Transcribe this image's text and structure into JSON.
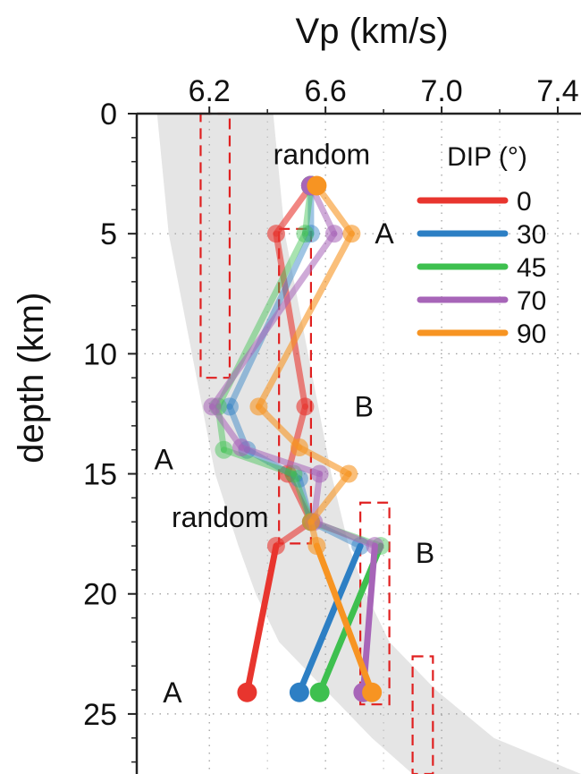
{
  "chart_data": {
    "type": "line",
    "xlabel": "Vp (km/s)",
    "ylabel": "depth (km)",
    "xlim": [
      5.95,
      7.48
    ],
    "ylim": [
      0,
      27.5
    ],
    "x_axis_position": "top",
    "y_inverted": true,
    "xticks": [
      6.2,
      6.6,
      7.0,
      7.4
    ],
    "xtick_labels": [
      "6.2",
      "6.6",
      "7.0",
      "7.4"
    ],
    "yticks": [
      0,
      5,
      10,
      15,
      20,
      25
    ],
    "ytick_labels": [
      "0",
      "5",
      "10",
      "15",
      "20",
      "25"
    ],
    "grid": "dotted",
    "legend": {
      "title": "DIP (°)",
      "placement": "top-right",
      "entries": [
        "0",
        "30",
        "45",
        "70",
        "90"
      ]
    },
    "colors": {
      "0": "#e8352e",
      "30": "#2d7fc4",
      "45": "#3ec04f",
      "70": "#a765b8",
      "90": "#f79422",
      "band": "#e5e5e5",
      "box": "#e02020"
    },
    "reference_band": {
      "left_x": [
        6.02,
        6.06,
        6.14,
        6.22,
        6.3,
        6.36,
        6.44,
        6.6,
        6.76,
        6.9
      ],
      "right_x": [
        6.42,
        6.46,
        6.54,
        6.62,
        6.68,
        6.74,
        6.82,
        6.98,
        7.18,
        7.48
      ],
      "depth": [
        0,
        5,
        10,
        15,
        18,
        20,
        22,
        24,
        26,
        27.5
      ]
    },
    "boxes": [
      {
        "x": [
          6.17,
          6.27
        ],
        "depth": [
          0,
          11.0
        ]
      },
      {
        "x": [
          6.44,
          6.55
        ],
        "depth": [
          4.8,
          17.9
        ]
      },
      {
        "x": [
          6.72,
          6.82
        ],
        "depth": [
          16.2,
          24.6
        ]
      },
      {
        "x": [
          6.9,
          6.97
        ],
        "depth": [
          22.6,
          27.5
        ]
      }
    ],
    "series": [
      {
        "name": "0",
        "points": [
          [
            6.55,
            3.0
          ],
          [
            6.43,
            5.0
          ],
          [
            6.53,
            12.2
          ],
          [
            6.47,
            15.0
          ],
          [
            6.55,
            17.0
          ],
          [
            6.43,
            18.0
          ],
          [
            6.33,
            24.1
          ]
        ]
      },
      {
        "name": "30",
        "points": [
          [
            6.55,
            3.0
          ],
          [
            6.55,
            5.0
          ],
          [
            6.27,
            12.2
          ],
          [
            6.33,
            14.0
          ],
          [
            6.51,
            15.2
          ],
          [
            6.55,
            17.0
          ],
          [
            6.72,
            18.0
          ],
          [
            6.51,
            24.1
          ]
        ]
      },
      {
        "name": "45",
        "points": [
          [
            6.55,
            3.0
          ],
          [
            6.53,
            5.0
          ],
          [
            6.23,
            12.2
          ],
          [
            6.25,
            14.0
          ],
          [
            6.49,
            15.0
          ],
          [
            6.55,
            17.0
          ],
          [
            6.79,
            18.0
          ],
          [
            6.58,
            24.1
          ]
        ]
      },
      {
        "name": "70",
        "points": [
          [
            6.55,
            3.0
          ],
          [
            6.63,
            5.0
          ],
          [
            6.21,
            12.2
          ],
          [
            6.31,
            13.9
          ],
          [
            6.58,
            15.0
          ],
          [
            6.56,
            17.0
          ],
          [
            6.77,
            18.0
          ],
          [
            6.73,
            24.1
          ]
        ]
      },
      {
        "name": "90",
        "points": [
          [
            6.57,
            3.0
          ],
          [
            6.69,
            5.0
          ],
          [
            6.37,
            12.2
          ],
          [
            6.51,
            13.9
          ],
          [
            6.68,
            15.0
          ],
          [
            6.55,
            17.0
          ],
          [
            6.57,
            18.0
          ],
          [
            6.76,
            24.1
          ]
        ]
      }
    ],
    "annotations": [
      {
        "text": "random",
        "x": 6.42,
        "depth": 1.7
      },
      {
        "text": "A",
        "x": 6.77,
        "depth": 5.0
      },
      {
        "text": "B",
        "x": 6.7,
        "depth": 12.2
      },
      {
        "text": "A",
        "x": 6.01,
        "depth": 14.4
      },
      {
        "text": "random",
        "x": 6.07,
        "depth": 16.8
      },
      {
        "text": "B",
        "x": 6.91,
        "depth": 18.3
      },
      {
        "text": "A",
        "x": 6.04,
        "depth": 24.1
      }
    ]
  }
}
